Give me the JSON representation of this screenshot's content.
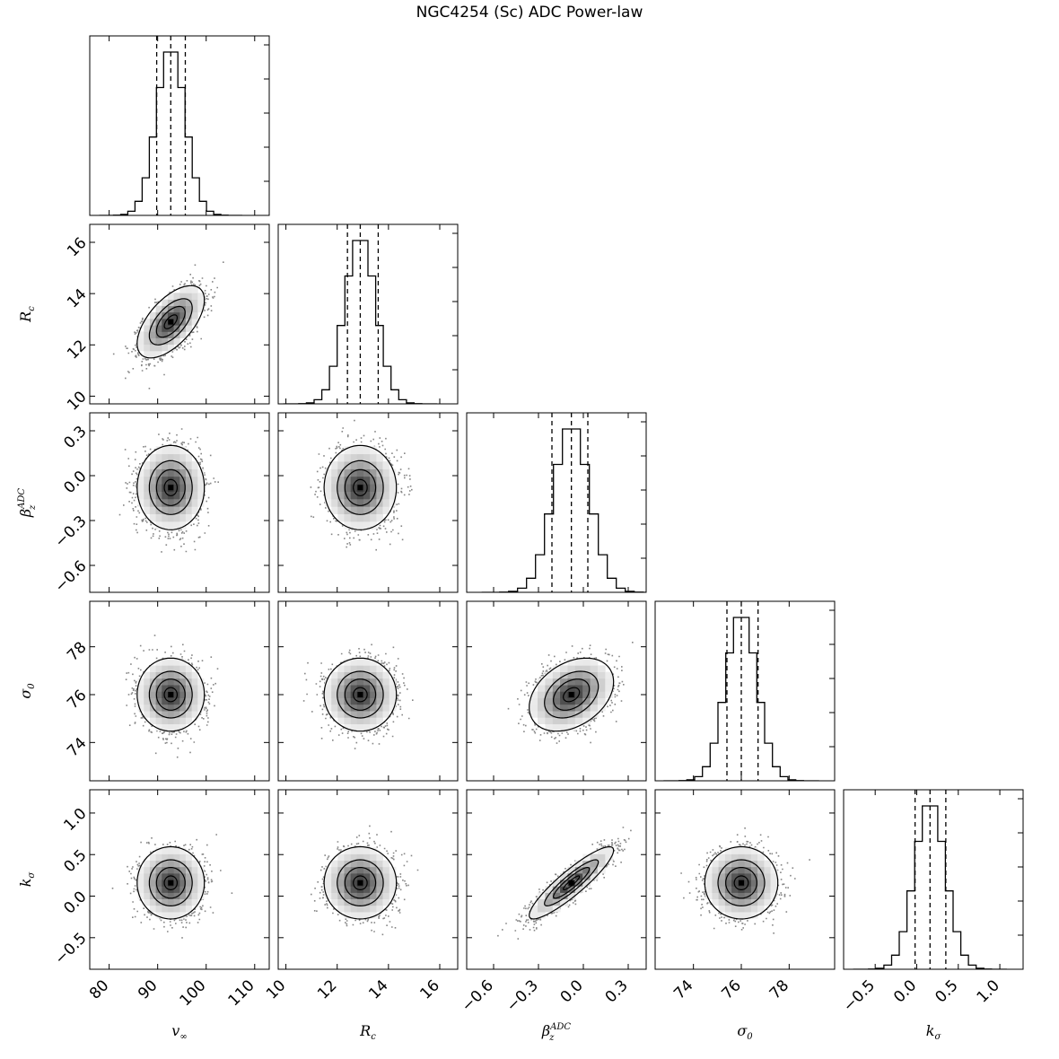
{
  "title": "NGC4254 (Sc) ADC Power-law",
  "chart_data": {
    "type": "corner",
    "title": "NGC4254 (Sc) ADC Power-law",
    "parameters": [
      {
        "label": "v_∞",
        "label_main": "v",
        "label_sub": "∞",
        "median": 92.7,
        "q16": 89.8,
        "q84": 95.7,
        "range": [
          76,
          113
        ],
        "ticks": [
          80,
          90,
          100,
          110
        ],
        "tick_labels": [
          "80",
          "90",
          "100",
          "110"
        ]
      },
      {
        "label": "R_c",
        "label_main": "R",
        "label_sub": "c",
        "median": 12.9,
        "q16": 12.4,
        "q84": 13.6,
        "range": [
          9.7,
          16.7
        ],
        "ticks": [
          10,
          12,
          14,
          16
        ],
        "tick_labels": [
          "10",
          "12",
          "14",
          "16"
        ]
      },
      {
        "label": "β_z^ADC",
        "label_main": "β",
        "label_sub": "z",
        "label_sup": "ADC",
        "median": -0.08,
        "q16": -0.21,
        "q84": 0.03,
        "range": [
          -0.78,
          0.42
        ],
        "ticks": [
          -0.6,
          -0.3,
          0.0,
          0.3
        ],
        "tick_labels": [
          "−0.6",
          "−0.3",
          "0.0",
          "0.3"
        ]
      },
      {
        "label": "σ_0",
        "label_main": "σ",
        "label_sub": "0",
        "median": 76.0,
        "q16": 75.4,
        "q84": 76.7,
        "range": [
          72.4,
          79.9
        ],
        "ticks": [
          74,
          76,
          78
        ],
        "tick_labels": [
          "74",
          "76",
          "78"
        ]
      },
      {
        "label": "k_σ",
        "label_main": "k",
        "label_sub": "σ",
        "median": 0.16,
        "q16": -0.02,
        "q84": 0.35,
        "range": [
          -0.88,
          1.28
        ],
        "ticks": [
          -0.5,
          0.0,
          0.5,
          1.0
        ],
        "tick_labels": [
          "−0.5",
          "0.0",
          "0.5",
          "1.0"
        ]
      }
    ],
    "correlations": [
      [
        1.0,
        0.6,
        0.0,
        0.0,
        0.0
      ],
      [
        0.6,
        1.0,
        0.0,
        0.0,
        0.0
      ],
      [
        0.0,
        0.0,
        1.0,
        0.35,
        0.9
      ],
      [
        0.0,
        0.0,
        0.35,
        1.0,
        0.0
      ],
      [
        0.0,
        0.0,
        0.9,
        0.0,
        1.0
      ]
    ],
    "histogram_style": "step, dashed lines at 16th/50th/84th percentiles",
    "contour_levels": [
      "0.5 sigma",
      "1 sigma",
      "1.5 sigma",
      "2 sigma"
    ]
  }
}
